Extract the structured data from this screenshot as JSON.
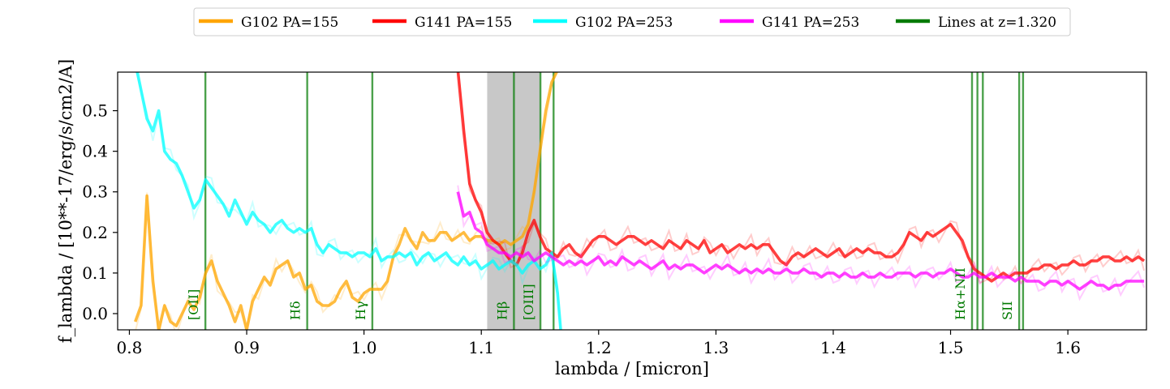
{
  "chart_data": {
    "type": "line",
    "title": "",
    "xlabel": "lambda / [micron]",
    "ylabel": "f_lambda / [10**-17/erg/s/cm2/A]",
    "xlim": [
      0.79,
      1.667
    ],
    "ylim": [
      -0.04,
      0.595
    ],
    "xticks": [
      0.8,
      0.9,
      1.0,
      1.1,
      1.2,
      1.3,
      1.4,
      1.5,
      1.6
    ],
    "xtick_labels": [
      "0.8",
      "0.9",
      "1.0",
      "1.1",
      "1.2",
      "1.3",
      "1.4",
      "1.5",
      "1.6"
    ],
    "yticks": [
      0.0,
      0.1,
      0.2,
      0.3,
      0.4,
      0.5
    ],
    "ytick_labels": [
      "0.0",
      "0.1",
      "0.2",
      "0.3",
      "0.4",
      "0.5"
    ],
    "grid": false,
    "legend_position": "top-center, above plot",
    "shaded_band": {
      "x0": 1.105,
      "x1": 1.15,
      "color": "#c8c8c8"
    },
    "series": [
      {
        "name": "G102 PA=155",
        "color": "#ffa500",
        "x": [
          0.805,
          0.81,
          0.815,
          0.82,
          0.825,
          0.83,
          0.835,
          0.84,
          0.845,
          0.85,
          0.855,
          0.86,
          0.865,
          0.87,
          0.875,
          0.88,
          0.885,
          0.89,
          0.895,
          0.9,
          0.905,
          0.91,
          0.915,
          0.92,
          0.925,
          0.93,
          0.935,
          0.94,
          0.945,
          0.95,
          0.955,
          0.96,
          0.965,
          0.97,
          0.975,
          0.98,
          0.985,
          0.99,
          0.995,
          1.0,
          1.005,
          1.01,
          1.015,
          1.02,
          1.025,
          1.03,
          1.035,
          1.04,
          1.045,
          1.05,
          1.055,
          1.06,
          1.065,
          1.07,
          1.075,
          1.08,
          1.085,
          1.09,
          1.095,
          1.1,
          1.105,
          1.11,
          1.115,
          1.12,
          1.125,
          1.13,
          1.135,
          1.14,
          1.145,
          1.15,
          1.155,
          1.16,
          1.165
        ],
        "values": [
          -0.02,
          0.02,
          0.29,
          0.08,
          -0.04,
          0.02,
          -0.02,
          -0.03,
          0.0,
          0.03,
          0.01,
          0.04,
          0.1,
          0.13,
          0.08,
          0.05,
          0.02,
          -0.02,
          0.02,
          -0.04,
          0.03,
          0.06,
          0.09,
          0.07,
          0.11,
          0.12,
          0.13,
          0.09,
          0.1,
          0.06,
          0.07,
          0.03,
          0.02,
          0.02,
          0.03,
          0.06,
          0.08,
          0.04,
          0.03,
          0.05,
          0.06,
          0.06,
          0.06,
          0.08,
          0.14,
          0.17,
          0.21,
          0.18,
          0.16,
          0.2,
          0.18,
          0.18,
          0.2,
          0.2,
          0.18,
          0.19,
          0.2,
          0.18,
          0.19,
          0.19,
          0.18,
          0.18,
          0.17,
          0.18,
          0.17,
          0.18,
          0.19,
          0.22,
          0.3,
          0.4,
          0.5,
          0.57,
          0.6
        ]
      },
      {
        "name": "G141 PA=155",
        "color": "#ff0000",
        "x": [
          1.08,
          1.085,
          1.09,
          1.095,
          1.1,
          1.105,
          1.11,
          1.115,
          1.12,
          1.125,
          1.13,
          1.135,
          1.14,
          1.145,
          1.15,
          1.155,
          1.16,
          1.165,
          1.17,
          1.175,
          1.18,
          1.185,
          1.19,
          1.195,
          1.2,
          1.205,
          1.21,
          1.215,
          1.22,
          1.225,
          1.23,
          1.235,
          1.24,
          1.245,
          1.25,
          1.255,
          1.26,
          1.265,
          1.27,
          1.275,
          1.28,
          1.285,
          1.29,
          1.295,
          1.3,
          1.305,
          1.31,
          1.315,
          1.32,
          1.325,
          1.33,
          1.335,
          1.34,
          1.345,
          1.35,
          1.355,
          1.36,
          1.365,
          1.37,
          1.375,
          1.38,
          1.385,
          1.39,
          1.395,
          1.4,
          1.405,
          1.41,
          1.415,
          1.42,
          1.425,
          1.43,
          1.435,
          1.44,
          1.445,
          1.45,
          1.455,
          1.46,
          1.465,
          1.47,
          1.475,
          1.48,
          1.485,
          1.49,
          1.495,
          1.5,
          1.505,
          1.51,
          1.515,
          1.52,
          1.525,
          1.53,
          1.535,
          1.54,
          1.545,
          1.55,
          1.555,
          1.56,
          1.565,
          1.57,
          1.575,
          1.58,
          1.585,
          1.59,
          1.595,
          1.6,
          1.605,
          1.61,
          1.615,
          1.62,
          1.625,
          1.63,
          1.635,
          1.64,
          1.645,
          1.65,
          1.655,
          1.66,
          1.665
        ],
        "values": [
          0.6,
          0.45,
          0.32,
          0.28,
          0.25,
          0.2,
          0.18,
          0.17,
          0.15,
          0.13,
          0.12,
          0.15,
          0.2,
          0.23,
          0.19,
          0.16,
          0.15,
          0.14,
          0.16,
          0.17,
          0.15,
          0.14,
          0.16,
          0.18,
          0.19,
          0.19,
          0.18,
          0.17,
          0.18,
          0.19,
          0.19,
          0.18,
          0.17,
          0.18,
          0.17,
          0.16,
          0.18,
          0.17,
          0.16,
          0.18,
          0.17,
          0.16,
          0.18,
          0.15,
          0.16,
          0.17,
          0.15,
          0.16,
          0.17,
          0.16,
          0.17,
          0.16,
          0.17,
          0.17,
          0.15,
          0.13,
          0.12,
          0.14,
          0.15,
          0.14,
          0.15,
          0.16,
          0.15,
          0.14,
          0.15,
          0.16,
          0.14,
          0.15,
          0.16,
          0.15,
          0.16,
          0.15,
          0.15,
          0.14,
          0.14,
          0.15,
          0.17,
          0.2,
          0.19,
          0.18,
          0.2,
          0.19,
          0.2,
          0.21,
          0.22,
          0.2,
          0.18,
          0.14,
          0.11,
          0.1,
          0.09,
          0.08,
          0.09,
          0.1,
          0.09,
          0.1,
          0.1,
          0.1,
          0.11,
          0.11,
          0.12,
          0.12,
          0.11,
          0.12,
          0.12,
          0.13,
          0.12,
          0.12,
          0.13,
          0.13,
          0.14,
          0.14,
          0.13,
          0.13,
          0.14,
          0.13,
          0.14,
          0.13
        ]
      },
      {
        "name": "G102 PA=253",
        "color": "#00ffff",
        "x": [
          0.805,
          0.81,
          0.815,
          0.82,
          0.825,
          0.83,
          0.835,
          0.84,
          0.845,
          0.85,
          0.855,
          0.86,
          0.865,
          0.87,
          0.875,
          0.88,
          0.885,
          0.89,
          0.895,
          0.9,
          0.905,
          0.91,
          0.915,
          0.92,
          0.925,
          0.93,
          0.935,
          0.94,
          0.945,
          0.95,
          0.955,
          0.96,
          0.965,
          0.97,
          0.975,
          0.98,
          0.985,
          0.99,
          0.995,
          1.0,
          1.005,
          1.01,
          1.015,
          1.02,
          1.025,
          1.03,
          1.035,
          1.04,
          1.045,
          1.05,
          1.055,
          1.06,
          1.065,
          1.07,
          1.075,
          1.08,
          1.085,
          1.09,
          1.095,
          1.1,
          1.105,
          1.11,
          1.115,
          1.12,
          1.125,
          1.13,
          1.135,
          1.14,
          1.145,
          1.15,
          1.155,
          1.16,
          1.165,
          1.168
        ],
        "values": [
          0.62,
          0.55,
          0.48,
          0.45,
          0.5,
          0.4,
          0.38,
          0.37,
          0.34,
          0.3,
          0.26,
          0.28,
          0.33,
          0.31,
          0.29,
          0.27,
          0.24,
          0.28,
          0.25,
          0.22,
          0.25,
          0.23,
          0.22,
          0.2,
          0.22,
          0.23,
          0.21,
          0.2,
          0.21,
          0.2,
          0.21,
          0.17,
          0.15,
          0.17,
          0.16,
          0.15,
          0.15,
          0.14,
          0.15,
          0.15,
          0.14,
          0.16,
          0.13,
          0.14,
          0.14,
          0.15,
          0.14,
          0.15,
          0.12,
          0.14,
          0.15,
          0.13,
          0.14,
          0.15,
          0.13,
          0.12,
          0.14,
          0.12,
          0.13,
          0.11,
          0.12,
          0.13,
          0.11,
          0.12,
          0.13,
          0.12,
          0.1,
          0.12,
          0.13,
          0.11,
          0.12,
          0.15,
          0.05,
          -0.05
        ]
      },
      {
        "name": "G141 PA=253",
        "color": "#ff00ff",
        "x": [
          1.08,
          1.085,
          1.09,
          1.095,
          1.1,
          1.105,
          1.11,
          1.115,
          1.12,
          1.125,
          1.13,
          1.135,
          1.14,
          1.145,
          1.15,
          1.155,
          1.16,
          1.165,
          1.17,
          1.175,
          1.18,
          1.185,
          1.19,
          1.195,
          1.2,
          1.205,
          1.21,
          1.215,
          1.22,
          1.225,
          1.23,
          1.235,
          1.24,
          1.245,
          1.25,
          1.255,
          1.26,
          1.265,
          1.27,
          1.275,
          1.28,
          1.285,
          1.29,
          1.295,
          1.3,
          1.305,
          1.31,
          1.315,
          1.32,
          1.325,
          1.33,
          1.335,
          1.34,
          1.345,
          1.35,
          1.355,
          1.36,
          1.365,
          1.37,
          1.375,
          1.38,
          1.385,
          1.39,
          1.395,
          1.4,
          1.405,
          1.41,
          1.415,
          1.42,
          1.425,
          1.43,
          1.435,
          1.44,
          1.445,
          1.45,
          1.455,
          1.46,
          1.465,
          1.47,
          1.475,
          1.48,
          1.485,
          1.49,
          1.495,
          1.5,
          1.505,
          1.51,
          1.515,
          1.52,
          1.525,
          1.53,
          1.535,
          1.54,
          1.545,
          1.55,
          1.555,
          1.56,
          1.565,
          1.57,
          1.575,
          1.58,
          1.585,
          1.59,
          1.595,
          1.6,
          1.605,
          1.61,
          1.615,
          1.62,
          1.625,
          1.63,
          1.635,
          1.64,
          1.645,
          1.65,
          1.655,
          1.66,
          1.665
        ],
        "values": [
          0.3,
          0.24,
          0.25,
          0.21,
          0.2,
          0.17,
          0.16,
          0.15,
          0.15,
          0.14,
          0.15,
          0.14,
          0.15,
          0.13,
          0.14,
          0.15,
          0.14,
          0.13,
          0.12,
          0.13,
          0.12,
          0.13,
          0.12,
          0.13,
          0.14,
          0.12,
          0.13,
          0.12,
          0.14,
          0.13,
          0.12,
          0.13,
          0.12,
          0.11,
          0.12,
          0.13,
          0.11,
          0.12,
          0.11,
          0.12,
          0.12,
          0.11,
          0.1,
          0.11,
          0.12,
          0.11,
          0.12,
          0.11,
          0.1,
          0.11,
          0.1,
          0.11,
          0.1,
          0.11,
          0.1,
          0.1,
          0.11,
          0.1,
          0.1,
          0.11,
          0.1,
          0.1,
          0.09,
          0.1,
          0.1,
          0.09,
          0.1,
          0.09,
          0.09,
          0.1,
          0.09,
          0.09,
          0.1,
          0.09,
          0.09,
          0.1,
          0.1,
          0.1,
          0.09,
          0.1,
          0.1,
          0.09,
          0.1,
          0.1,
          0.11,
          0.1,
          0.09,
          0.09,
          0.1,
          0.09,
          0.09,
          0.1,
          0.09,
          0.09,
          0.09,
          0.08,
          0.09,
          0.08,
          0.08,
          0.08,
          0.07,
          0.08,
          0.08,
          0.07,
          0.08,
          0.07,
          0.06,
          0.07,
          0.08,
          0.07,
          0.07,
          0.06,
          0.07,
          0.07,
          0.08,
          0.08,
          0.08,
          0.08
        ]
      }
    ],
    "emission_lines": {
      "name": "Lines at z=1.320",
      "color": "#007a00",
      "lines": [
        {
          "label": "[OII]",
          "x": [
            0.8648
          ]
        },
        {
          "label": "Hδ",
          "x": [
            0.9516
          ]
        },
        {
          "label": "Hγ",
          "x": [
            1.0071
          ]
        },
        {
          "label": "Hβ",
          "x": [
            1.1278
          ]
        },
        {
          "label": "[OIII]",
          "x": [
            1.1504,
            1.1616
          ]
        },
        {
          "label": "Hα+NII",
          "x": [
            1.5183,
            1.5229,
            1.5275
          ]
        },
        {
          "label": "SII",
          "x": [
            1.5585,
            1.5618
          ]
        }
      ]
    }
  }
}
